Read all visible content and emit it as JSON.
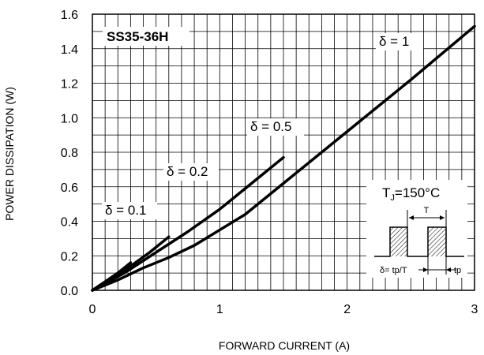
{
  "chart_data": {
    "type": "line",
    "title": "SS35-36H",
    "xlabel": "FORWARD CURRENT (A)",
    "ylabel": "POWER DISSIPATION (W)",
    "xlim": [
      0,
      3
    ],
    "ylim": [
      0,
      1.6
    ],
    "x_ticks": [
      "0",
      "1",
      "2",
      "3"
    ],
    "y_ticks": [
      "0.0",
      "0.2",
      "0.4",
      "0.6",
      "0.8",
      "1.0",
      "1.2",
      "1.4",
      "1.6"
    ],
    "grid": true,
    "series": [
      {
        "name": "δ = 0.1",
        "x": [
          0,
          0.1,
          0.2,
          0.3
        ],
        "y": [
          0,
          0.05,
          0.1,
          0.16
        ]
      },
      {
        "name": "δ = 0.2",
        "x": [
          0,
          0.1,
          0.3,
          0.45,
          0.6
        ],
        "y": [
          0,
          0.04,
          0.14,
          0.22,
          0.31
        ]
      },
      {
        "name": "δ = 0.5",
        "x": [
          0,
          0.25,
          0.5,
          0.75,
          1.0,
          1.25,
          1.5
        ],
        "y": [
          0,
          0.1,
          0.22,
          0.34,
          0.47,
          0.62,
          0.77
        ]
      },
      {
        "name": "δ = 1",
        "x": [
          0,
          0.2,
          0.4,
          0.6,
          0.8,
          1.0,
          1.2,
          1.5,
          2.0,
          2.5,
          3.0
        ],
        "y": [
          0,
          0.06,
          0.13,
          0.19,
          0.26,
          0.35,
          0.44,
          0.62,
          0.92,
          1.22,
          1.53
        ]
      }
    ],
    "annotations": {
      "tj_prefix": "T",
      "tj_subscript": "J",
      "tj_value": "=150°C",
      "pulse_period": "T",
      "pulse_width": "tp",
      "duty_formula": "δ= tp/T"
    }
  }
}
